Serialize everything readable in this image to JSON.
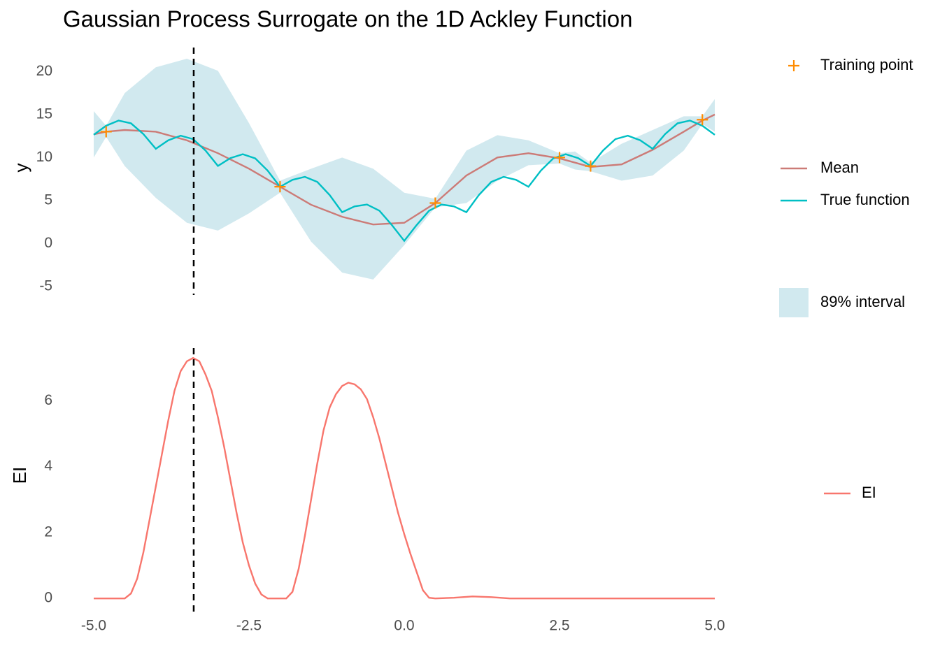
{
  "chart_data": [
    {
      "type": "line",
      "title": "Gaussian Process Surrogate on the 1D Ackley Function",
      "y_label": "y",
      "xlim": [
        -5,
        5
      ],
      "ylim": [
        -6,
        22.8
      ],
      "yticks": [
        -5,
        0,
        5,
        10,
        15,
        20
      ],
      "vline_x": -3.39,
      "series": [
        {
          "name": "89% interval",
          "color": "#d1e9ef",
          "x": [
            -5,
            -4.8,
            -4.5,
            -4,
            -3.5,
            -3,
            -2.5,
            -2,
            -1.5,
            -1,
            -0.5,
            0,
            0.5,
            1,
            1.5,
            2,
            2.5,
            2.75,
            3,
            3.5,
            4,
            4.5,
            4.8,
            5
          ],
          "lower": [
            10.0,
            12.4,
            9.0,
            5.3,
            2.4,
            1.5,
            3.5,
            5.9,
            0.2,
            -3.4,
            -4.2,
            -0.2,
            4.2,
            4.7,
            7.3,
            9.1,
            9.3,
            8.6,
            8.4,
            7.3,
            7.9,
            10.8,
            13.9,
            13.0
          ],
          "upper": [
            15.4,
            13.7,
            17.5,
            20.5,
            21.5,
            20.1,
            14.0,
            7.3,
            8.7,
            10.0,
            8.7,
            5.9,
            5.2,
            10.8,
            12.6,
            12.0,
            10.5,
            10.7,
            9.4,
            11.6,
            13.2,
            14.8,
            14.8,
            16.8
          ]
        },
        {
          "name": "Mean",
          "color": "#cc7b77",
          "x": [
            -5,
            -4.8,
            -4.5,
            -4,
            -3.5,
            -3,
            -2.5,
            -2,
            -1.5,
            -1,
            -0.5,
            0,
            0.5,
            1,
            1.5,
            2,
            2.5,
            2.75,
            3,
            3.5,
            4,
            4.5,
            4.8,
            5
          ],
          "values": [
            12.7,
            13.0,
            13.2,
            13.0,
            12.0,
            10.5,
            8.7,
            6.6,
            4.5,
            3.1,
            2.2,
            2.4,
            4.7,
            7.9,
            10.0,
            10.5,
            9.9,
            9.4,
            8.9,
            9.2,
            10.9,
            13.0,
            14.3,
            15.0
          ]
        },
        {
          "name": "True function",
          "color": "#00bfc4",
          "x": [
            -5,
            -4.8,
            -4.6,
            -4.4,
            -4.2,
            -4,
            -3.8,
            -3.6,
            -3.4,
            -3.2,
            -3,
            -2.8,
            -2.6,
            -2.4,
            -2.2,
            -2,
            -1.8,
            -1.6,
            -1.4,
            -1.2,
            -1,
            -0.8,
            -0.6,
            -0.4,
            -0.2,
            0,
            0.2,
            0.4,
            0.6,
            0.8,
            1,
            1.2,
            1.4,
            1.6,
            1.8,
            2,
            2.2,
            2.4,
            2.6,
            2.8,
            3,
            3.2,
            3.4,
            3.6,
            3.8,
            4,
            4.2,
            4.4,
            4.6,
            4.8,
            5
          ],
          "values": [
            12.64,
            13.7,
            14.3,
            13.98,
            12.72,
            11.01,
            12.0,
            12.54,
            12.14,
            10.81,
            9.02,
            9.93,
            10.38,
            9.9,
            8.48,
            6.59,
            7.4,
            7.75,
            7.16,
            5.62,
            3.63,
            4.31,
            4.53,
            3.81,
            2.14,
            0.3,
            2.14,
            3.81,
            4.53,
            4.31,
            3.63,
            5.62,
            7.16,
            7.75,
            7.4,
            6.59,
            8.48,
            9.9,
            10.38,
            9.93,
            9.02,
            10.81,
            12.14,
            12.54,
            12.0,
            11.01,
            12.72,
            13.98,
            14.3,
            13.7,
            12.64
          ]
        },
        {
          "name": "Training point",
          "color": "#ff8c00",
          "marker": "cross",
          "x": [
            -4.8,
            -2.0,
            0.5,
            2.5,
            3.0,
            4.8
          ],
          "values": [
            13.0,
            6.6,
            4.7,
            10.0,
            9.0,
            14.4
          ]
        }
      ]
    },
    {
      "type": "line",
      "y_label": "EI",
      "xlim": [
        -5,
        5
      ],
      "ylim": [
        -0.4,
        7.6
      ],
      "yticks": [
        0,
        2,
        4,
        6
      ],
      "xticks": [
        {
          "value": -5,
          "label": "-5.0"
        },
        -2.5,
        {
          "value": 0,
          "label": "0.0"
        },
        2.5,
        {
          "value": 5,
          "label": "5.0"
        }
      ],
      "vline_x": -3.39,
      "series": [
        {
          "name": "EI",
          "color": "#f8766d",
          "x": [
            -5,
            -4.5,
            -4.4,
            -4.3,
            -4.2,
            -4.1,
            -4.0,
            -3.9,
            -3.8,
            -3.7,
            -3.6,
            -3.5,
            -3.4,
            -3.3,
            -3.2,
            -3.1,
            -3.0,
            -2.9,
            -2.8,
            -2.7,
            -2.6,
            -2.5,
            -2.4,
            -2.3,
            -2.2,
            -1.9,
            -1.8,
            -1.7,
            -1.6,
            -1.5,
            -1.4,
            -1.3,
            -1.2,
            -1.1,
            -1.0,
            -0.9,
            -0.8,
            -0.7,
            -0.6,
            -0.5,
            -0.4,
            -0.3,
            -0.2,
            -0.1,
            0,
            0.1,
            0.2,
            0.3,
            0.4,
            0.5,
            0.8,
            1.1,
            1.4,
            1.7,
            5
          ],
          "values": [
            0,
            0,
            0.15,
            0.6,
            1.4,
            2.4,
            3.4,
            4.4,
            5.4,
            6.3,
            6.9,
            7.2,
            7.3,
            7.2,
            6.8,
            6.3,
            5.5,
            4.6,
            3.6,
            2.6,
            1.7,
            1.0,
            0.45,
            0.12,
            0,
            0,
            0.2,
            0.9,
            1.9,
            3.0,
            4.1,
            5.1,
            5.8,
            6.2,
            6.45,
            6.55,
            6.5,
            6.35,
            6.05,
            5.5,
            4.85,
            4.1,
            3.35,
            2.6,
            1.95,
            1.35,
            0.8,
            0.25,
            0.02,
            0,
            0.02,
            0.06,
            0.04,
            0,
            0
          ]
        }
      ]
    }
  ]
}
